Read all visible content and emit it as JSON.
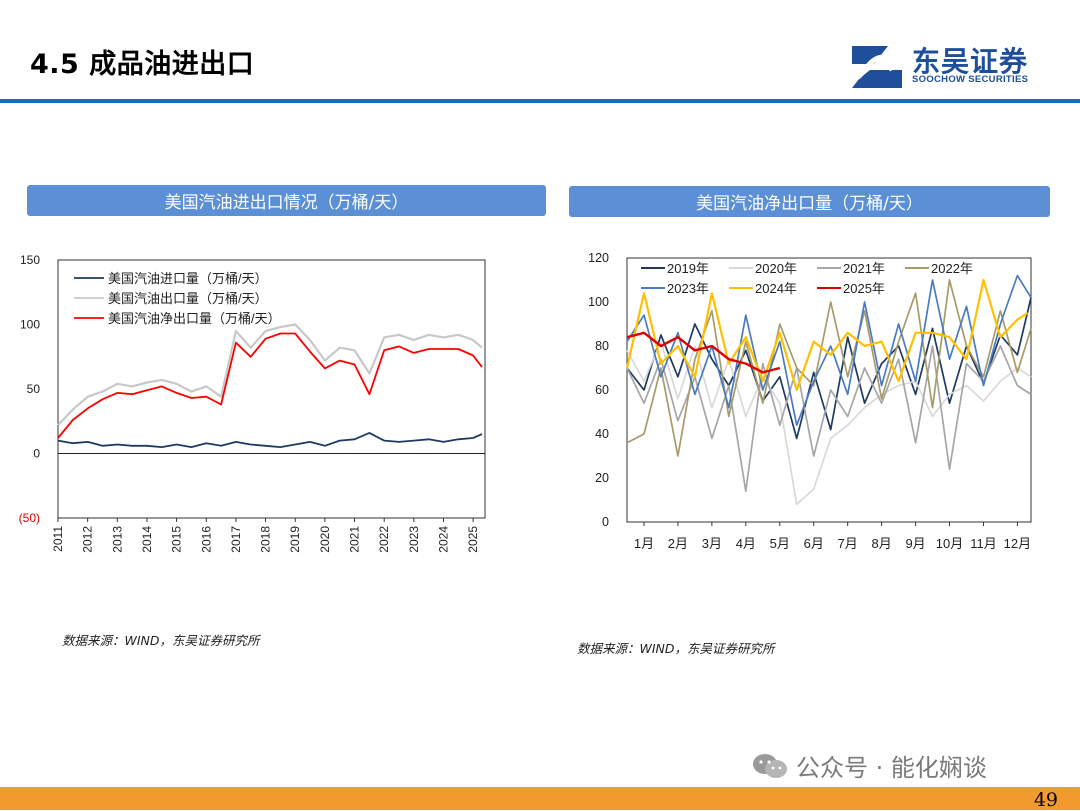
{
  "header": {
    "title": "4.5 成品油进出口"
  },
  "logo": {
    "name": "东吴证券",
    "english": "SOOCHOW SECURITIES"
  },
  "footer": {
    "page": "49",
    "watermark": "公众号 · 能化娴谈"
  },
  "colors": {
    "brand_blue": "#1f6cb5",
    "panel_blue": "#5b8fd6",
    "footer_orange": "#f39a2e",
    "import": "#1f3a5f",
    "export": "#c8c8c8",
    "net": "#ff0000",
    "y2019": "#1f3a5f",
    "y2020": "#d9d9d9",
    "y2021": "#a6a6a6",
    "y2022": "#a89b6a",
    "y2023": "#4a7bc0",
    "y2024": "#ffc000",
    "y2025": "#e00000"
  },
  "panels": {
    "left": {
      "title": "美国汽油进出口情况（万桶/天）",
      "source": "数据来源：WIND，东吴证券研究所"
    },
    "right": {
      "title": "美国汽油净出口量（万桶/天）",
      "source": "数据来源：WIND，东吴证券研究所"
    }
  },
  "chart_data": [
    {
      "type": "line",
      "x_kind": "year",
      "x": [
        2011,
        2012,
        2013,
        2014,
        2015,
        2016,
        2017,
        2018,
        2019,
        2020,
        2021,
        2022,
        2023,
        2024,
        2025
      ],
      "x_range": [
        2011,
        2025.4
      ],
      "y_ticks": [
        "150",
        "100",
        "50",
        "0",
        "(50)"
      ],
      "y_tick_values": [
        150,
        100,
        50,
        0,
        -50
      ],
      "ylim": [
        -50,
        150
      ],
      "legend_position": "top-left",
      "series": [
        {
          "name": "美国汽油进口量（万桶/天）",
          "color_key": "import",
          "values": [
            [
              2011,
              10
            ],
            [
              2011.5,
              8
            ],
            [
              2012,
              9
            ],
            [
              2012.5,
              6
            ],
            [
              2013,
              7
            ],
            [
              2013.5,
              6
            ],
            [
              2014,
              6
            ],
            [
              2014.5,
              5
            ],
            [
              2015,
              7
            ],
            [
              2015.5,
              5
            ],
            [
              2016,
              8
            ],
            [
              2016.5,
              6
            ],
            [
              2017,
              9
            ],
            [
              2017.5,
              7
            ],
            [
              2018,
              6
            ],
            [
              2018.5,
              5
            ],
            [
              2019,
              7
            ],
            [
              2019.5,
              9
            ],
            [
              2020,
              6
            ],
            [
              2020.5,
              10
            ],
            [
              2021,
              11
            ],
            [
              2021.5,
              16
            ],
            [
              2022,
              10
            ],
            [
              2022.5,
              9
            ],
            [
              2023,
              10
            ],
            [
              2023.5,
              11
            ],
            [
              2024,
              9
            ],
            [
              2024.5,
              11
            ],
            [
              2025,
              12
            ],
            [
              2025.3,
              15
            ]
          ]
        },
        {
          "name": "美国汽油出口量（万桶/天）",
          "color_key": "export",
          "values": [
            [
              2011,
              22
            ],
            [
              2011.5,
              34
            ],
            [
              2012,
              44
            ],
            [
              2012.5,
              48
            ],
            [
              2013,
              54
            ],
            [
              2013.5,
              52
            ],
            [
              2014,
              55
            ],
            [
              2014.5,
              57
            ],
            [
              2015,
              54
            ],
            [
              2015.5,
              48
            ],
            [
              2016,
              52
            ],
            [
              2016.5,
              44
            ],
            [
              2017,
              95
            ],
            [
              2017.5,
              82
            ],
            [
              2018,
              95
            ],
            [
              2018.5,
              98
            ],
            [
              2019,
              100
            ],
            [
              2019.5,
              88
            ],
            [
              2020,
              72
            ],
            [
              2020.5,
              82
            ],
            [
              2021,
              80
            ],
            [
              2021.5,
              62
            ],
            [
              2022,
              90
            ],
            [
              2022.5,
              92
            ],
            [
              2023,
              88
            ],
            [
              2023.5,
              92
            ],
            [
              2024,
              90
            ],
            [
              2024.5,
              92
            ],
            [
              2025,
              88
            ],
            [
              2025.3,
              82
            ]
          ]
        },
        {
          "name": "美国汽油净出口量（万桶/天）",
          "color_key": "net",
          "values": [
            [
              2011,
              12
            ],
            [
              2011.5,
              26
            ],
            [
              2012,
              35
            ],
            [
              2012.5,
              42
            ],
            [
              2013,
              47
            ],
            [
              2013.5,
              46
            ],
            [
              2014,
              49
            ],
            [
              2014.5,
              52
            ],
            [
              2015,
              47
            ],
            [
              2015.5,
              43
            ],
            [
              2016,
              44
            ],
            [
              2016.5,
              38
            ],
            [
              2017,
              86
            ],
            [
              2017.5,
              75
            ],
            [
              2018,
              89
            ],
            [
              2018.5,
              93
            ],
            [
              2019,
              93
            ],
            [
              2019.5,
              79
            ],
            [
              2020,
              66
            ],
            [
              2020.5,
              72
            ],
            [
              2021,
              69
            ],
            [
              2021.5,
              46
            ],
            [
              2022,
              80
            ],
            [
              2022.5,
              83
            ],
            [
              2023,
              78
            ],
            [
              2023.5,
              81
            ],
            [
              2024,
              81
            ],
            [
              2024.5,
              81
            ],
            [
              2025,
              76
            ],
            [
              2025.3,
              67
            ]
          ]
        }
      ]
    },
    {
      "type": "line",
      "categories": [
        "1月",
        "2月",
        "3月",
        "4月",
        "5月",
        "6月",
        "7月",
        "8月",
        "9月",
        "10月",
        "11月",
        "12月"
      ],
      "x_range": [
        0.5,
        12.4
      ],
      "y_ticks": [
        "120",
        "100",
        "80",
        "60",
        "40",
        "20",
        "0"
      ],
      "y_tick_values": [
        120,
        100,
        80,
        60,
        40,
        20,
        0
      ],
      "ylim": [
        0,
        120
      ],
      "legend_position": "top",
      "series": [
        {
          "name": "2019年",
          "color_key": "y2019",
          "values": [
            [
              0.5,
              70
            ],
            [
              1,
              60
            ],
            [
              1.5,
              85
            ],
            [
              2,
              66
            ],
            [
              2.5,
              90
            ],
            [
              3,
              74
            ],
            [
              3.5,
              62
            ],
            [
              4,
              78
            ],
            [
              4.5,
              55
            ],
            [
              5,
              66
            ],
            [
              5.5,
              38
            ],
            [
              6,
              68
            ],
            [
              6.5,
              42
            ],
            [
              7,
              84
            ],
            [
              7.5,
              54
            ],
            [
              8,
              72
            ],
            [
              8.5,
              80
            ],
            [
              9,
              58
            ],
            [
              9.5,
              88
            ],
            [
              10,
              54
            ],
            [
              10.5,
              80
            ],
            [
              11,
              63
            ],
            [
              11.5,
              85
            ],
            [
              12,
              76
            ],
            [
              12.4,
              102
            ]
          ]
        },
        {
          "name": "2020年",
          "color_key": "y2020",
          "values": [
            [
              0.5,
              78
            ],
            [
              1,
              64
            ],
            [
              1.5,
              82
            ],
            [
              2,
              56
            ],
            [
              2.5,
              80
            ],
            [
              3,
              52
            ],
            [
              3.5,
              74
            ],
            [
              4,
              48
            ],
            [
              4.5,
              66
            ],
            [
              5,
              54
            ],
            [
              5.5,
              8
            ],
            [
              6,
              15
            ],
            [
              6.5,
              38
            ],
            [
              7,
              44
            ],
            [
              7.5,
              52
            ],
            [
              8,
              58
            ],
            [
              8.5,
              62
            ],
            [
              9,
              64
            ],
            [
              9.5,
              48
            ],
            [
              10,
              58
            ],
            [
              10.5,
              62
            ],
            [
              11,
              55
            ],
            [
              11.5,
              64
            ],
            [
              12,
              70
            ],
            [
              12.4,
              66
            ]
          ]
        },
        {
          "name": "2021年",
          "color_key": "y2021",
          "values": [
            [
              0.5,
              70
            ],
            [
              1,
              54
            ],
            [
              1.5,
              74
            ],
            [
              2,
              46
            ],
            [
              2.5,
              66
            ],
            [
              3,
              38
            ],
            [
              3.5,
              62
            ],
            [
              4,
              14
            ],
            [
              4.5,
              72
            ],
            [
              5,
              44
            ],
            [
              5.5,
              70
            ],
            [
              6,
              30
            ],
            [
              6.5,
              60
            ],
            [
              7,
              48
            ],
            [
              7.5,
              70
            ],
            [
              8,
              54
            ],
            [
              8.5,
              74
            ],
            [
              9,
              36
            ],
            [
              9.5,
              80
            ],
            [
              10,
              24
            ],
            [
              10.5,
              72
            ],
            [
              11,
              64
            ],
            [
              11.5,
              80
            ],
            [
              12,
              62
            ],
            [
              12.4,
              58
            ]
          ]
        },
        {
          "name": "2022年",
          "color_key": "y2022",
          "values": [
            [
              0.5,
              36
            ],
            [
              1,
              40
            ],
            [
              1.5,
              70
            ],
            [
              2,
              30
            ],
            [
              2.5,
              74
            ],
            [
              3,
              96
            ],
            [
              3.5,
              48
            ],
            [
              4,
              82
            ],
            [
              4.5,
              54
            ],
            [
              5,
              90
            ],
            [
              5.5,
              70
            ],
            [
              6,
              62
            ],
            [
              6.5,
              100
            ],
            [
              7,
              66
            ],
            [
              7.5,
              96
            ],
            [
              8,
              56
            ],
            [
              8.5,
              82
            ],
            [
              9,
              104
            ],
            [
              9.5,
              52
            ],
            [
              10,
              110
            ],
            [
              10.5,
              80
            ],
            [
              11,
              66
            ],
            [
              11.5,
              96
            ],
            [
              12,
              68
            ],
            [
              12.4,
              88
            ]
          ]
        },
        {
          "name": "2023年",
          "color_key": "y2023",
          "values": [
            [
              0.5,
              82
            ],
            [
              1,
              94
            ],
            [
              1.5,
              66
            ],
            [
              2,
              86
            ],
            [
              2.5,
              58
            ],
            [
              3,
              80
            ],
            [
              3.5,
              52
            ],
            [
              4,
              94
            ],
            [
              4.5,
              60
            ],
            [
              5,
              82
            ],
            [
              5.5,
              44
            ],
            [
              6,
              64
            ],
            [
              6.5,
              80
            ],
            [
              7,
              58
            ],
            [
              7.5,
              100
            ],
            [
              8,
              62
            ],
            [
              8.5,
              90
            ],
            [
              9,
              64
            ],
            [
              9.5,
              110
            ],
            [
              10,
              74
            ],
            [
              10.5,
              98
            ],
            [
              11,
              62
            ],
            [
              11.5,
              90
            ],
            [
              12,
              112
            ],
            [
              12.4,
              102
            ]
          ]
        },
        {
          "name": "2024年",
          "color_key": "y2024",
          "values": [
            [
              0.5,
              70
            ],
            [
              1,
              104
            ],
            [
              1.5,
              72
            ],
            [
              2,
              80
            ],
            [
              2.5,
              66
            ],
            [
              3,
              104
            ],
            [
              3.5,
              72
            ],
            [
              4,
              84
            ],
            [
              4.5,
              64
            ],
            [
              5,
              86
            ],
            [
              5.5,
              60
            ],
            [
              6,
              82
            ],
            [
              6.5,
              76
            ],
            [
              7,
              86
            ],
            [
              7.5,
              80
            ],
            [
              8,
              82
            ],
            [
              8.5,
              64
            ],
            [
              9,
              86
            ],
            [
              9.5,
              86
            ],
            [
              10,
              84
            ],
            [
              10.5,
              74
            ],
            [
              11,
              110
            ],
            [
              11.5,
              84
            ],
            [
              12,
              92
            ],
            [
              12.3,
              95
            ]
          ]
        },
        {
          "name": "2025年",
          "color_key": "y2025",
          "values": [
            [
              0.5,
              84
            ],
            [
              1,
              86
            ],
            [
              1.5,
              80
            ],
            [
              2,
              84
            ],
            [
              2.5,
              78
            ],
            [
              3,
              80
            ],
            [
              3.5,
              74
            ],
            [
              4,
              72
            ],
            [
              4.5,
              68
            ],
            [
              5,
              70
            ]
          ]
        }
      ]
    }
  ]
}
